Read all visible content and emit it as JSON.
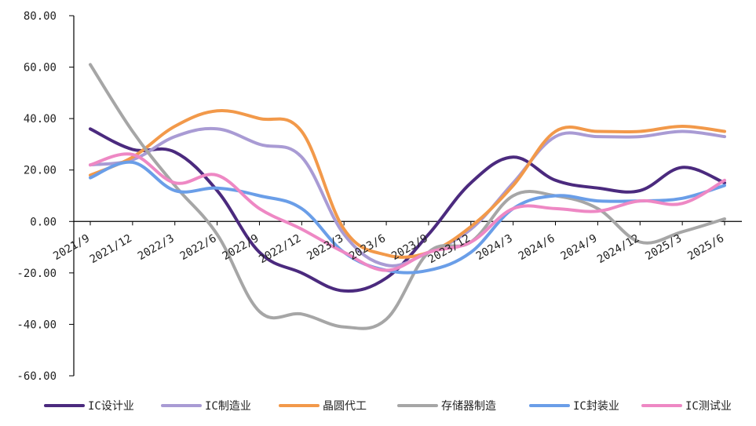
{
  "chart_data": {
    "type": "line",
    "title": "",
    "xlabel": "",
    "ylabel": "",
    "ylim": [
      -60,
      80
    ],
    "yticks": [
      "80.00",
      "60.00",
      "40.00",
      "20.00",
      "0.00",
      "-20.00",
      "-40.00",
      "-60.00"
    ],
    "ytick_values": [
      80,
      60,
      40,
      20,
      0,
      -20,
      -40,
      -60
    ],
    "x": [
      "2021/9",
      "2021/12",
      "2022/3",
      "2022/6",
      "2022/9",
      "2022/12",
      "2023/3",
      "2023/6",
      "2023/9",
      "2023/12",
      "2024/3",
      "2024/6",
      "2024/9",
      "2024/12",
      "2025/3",
      "2025/6"
    ],
    "grid": false,
    "legend_position": "bottom",
    "series": [
      {
        "name": "IC设计业",
        "color": "#4B2A7E",
        "values": [
          36,
          28,
          27,
          12,
          -12,
          -20,
          -27,
          -22,
          -5,
          15,
          25,
          16,
          13,
          12,
          21,
          15
        ]
      },
      {
        "name": "IC制造业",
        "color": "#A99BD4",
        "values": [
          22,
          24,
          33,
          36,
          30,
          25,
          -5,
          -17,
          -12,
          -3,
          15,
          33,
          33,
          33,
          35,
          33
        ]
      },
      {
        "name": "晶圆代工",
        "color": "#F2994A",
        "values": [
          18,
          25,
          37,
          43,
          40,
          35,
          -3,
          -13,
          -12,
          -2,
          14,
          35,
          35,
          35,
          37,
          35
        ]
      },
      {
        "name": "存储器制造",
        "color": "#A6A6A6",
        "values": [
          61,
          35,
          14,
          -5,
          -35,
          -36,
          -41,
          -38,
          -12,
          -8,
          10,
          10,
          5,
          -8,
          -4,
          1
        ]
      },
      {
        "name": "IC封装业",
        "color": "#6A9EE8",
        "values": [
          17,
          23,
          12,
          13,
          10,
          5,
          -12,
          -19,
          -19,
          -12,
          5,
          10,
          8,
          8,
          9,
          14
        ]
      },
      {
        "name": "IC测试业",
        "color": "#EE88C4",
        "values": [
          22,
          26,
          15,
          18,
          5,
          -3,
          -12,
          -19,
          -12,
          -8,
          5,
          5,
          4,
          8,
          7,
          16
        ]
      }
    ]
  }
}
